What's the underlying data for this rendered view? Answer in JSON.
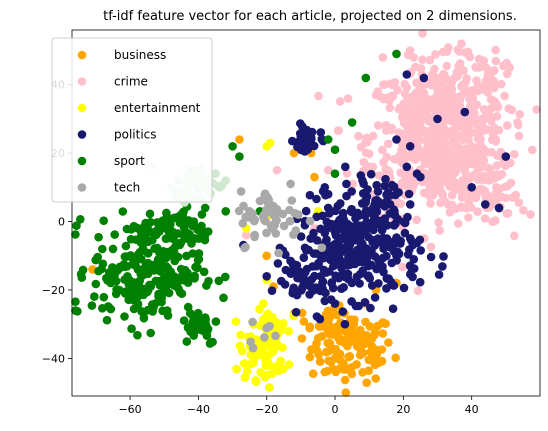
{
  "chart_data": {
    "type": "scatter",
    "title": "tf-idf feature vector for each article, projected on 2 dimensions.",
    "xlabel": "",
    "ylabel": "",
    "xlim": [
      -77,
      60
    ],
    "ylim": [
      -51,
      56
    ],
    "xticks": [
      -60,
      -40,
      -20,
      0,
      20,
      40
    ],
    "yticks": [
      -40,
      -20,
      0,
      20,
      40
    ],
    "xtick_labels": [
      "−60",
      "−40",
      "−20",
      "0",
      "20",
      "40"
    ],
    "ytick_labels": [
      "−40",
      "−20",
      "0",
      "20",
      "40"
    ],
    "grid": false,
    "legend_placement": "top-left",
    "series": [
      {
        "name": "business",
        "color": "#ffa500",
        "clusters": [
          {
            "center": [
              5,
              -37
            ],
            "spread": [
              6,
              5
            ],
            "n": 110
          },
          {
            "center": [
              -5,
              -30
            ],
            "spread": [
              3,
              3
            ],
            "n": 20
          }
        ],
        "points": [
          [
            -71,
            -14
          ],
          [
            -20,
            -10
          ],
          [
            -18,
            -19
          ],
          [
            -19,
            -28
          ],
          [
            -6,
            13
          ],
          [
            9,
            -24
          ],
          [
            5,
            -12
          ],
          [
            18,
            -18
          ],
          [
            -3,
            -44
          ],
          [
            -28,
            24
          ],
          [
            -12,
            20
          ],
          [
            12,
            -20
          ],
          [
            -7,
            20
          ]
        ]
      },
      {
        "name": "crime",
        "color": "#ffc0cb",
        "clusters": [
          {
            "center": [
              30,
              24
            ],
            "spread": [
              10,
              11
            ],
            "n": 650
          },
          {
            "center": [
              40,
              40
            ],
            "spread": [
              5,
              5
            ],
            "n": 60
          },
          {
            "center": [
              46,
              8
            ],
            "spread": [
              4,
              5
            ],
            "n": 60
          }
        ],
        "points": [
          [
            37,
            52
          ],
          [
            22,
            50
          ],
          [
            23,
            48
          ],
          [
            14,
            48
          ],
          [
            52,
            7
          ],
          [
            -26,
            -4
          ],
          [
            -20,
            0
          ],
          [
            -6,
            -2
          ],
          [
            -2,
            15
          ],
          [
            9,
            15
          ],
          [
            -17,
            15
          ],
          [
            2,
            0
          ]
        ]
      },
      {
        "name": "entertainment",
        "color": "#ffff00",
        "clusters": [
          {
            "center": [
              -21,
              -38
            ],
            "spread": [
              3.5,
              4
            ],
            "n": 70
          },
          {
            "center": [
              -20,
              -30
            ],
            "spread": [
              3,
              2
            ],
            "n": 30
          }
        ],
        "points": [
          [
            -20,
            22
          ],
          [
            -19,
            23
          ],
          [
            -19,
            2
          ],
          [
            -26,
            -2
          ],
          [
            -5,
            3
          ],
          [
            -20,
            -17
          ],
          [
            -21,
            -24
          ]
        ]
      },
      {
        "name": "politics",
        "color": "#191970",
        "clusters": [
          {
            "center": [
              7,
              -8
            ],
            "spread": [
              9,
              7
            ],
            "n": 300
          },
          {
            "center": [
              -10,
              -18
            ],
            "spread": [
              4,
              4
            ],
            "n": 40
          },
          {
            "center": [
              -8,
              24
            ],
            "spread": [
              2,
              2.5
            ],
            "n": 30
          },
          {
            "center": [
              12,
              6
            ],
            "spread": [
              3,
              3
            ],
            "n": 40
          }
        ],
        "points": [
          [
            21,
            43
          ],
          [
            26,
            42
          ],
          [
            24,
            14
          ],
          [
            18,
            24
          ],
          [
            21,
            16
          ],
          [
            22,
            5
          ],
          [
            3,
            16
          ],
          [
            -2,
            4
          ],
          [
            -3,
            10
          ],
          [
            -20,
            -16
          ],
          [
            -1,
            -18
          ],
          [
            0,
            -24
          ],
          [
            25,
            13
          ],
          [
            40,
            10
          ],
          [
            48,
            4
          ],
          [
            44,
            5
          ],
          [
            50,
            19
          ],
          [
            38,
            32
          ],
          [
            22,
            22
          ],
          [
            30,
            30
          ],
          [
            -2,
            8
          ],
          [
            8,
            12
          ]
        ]
      },
      {
        "name": "sport",
        "color": "#008000",
        "clusters": [
          {
            "center": [
              -55,
              -14
            ],
            "spread": [
              8,
              8
            ],
            "n": 260
          },
          {
            "center": [
              -45,
              -2
            ],
            "spread": [
              4,
              3
            ],
            "n": 40
          },
          {
            "center": [
              -40,
              -30
            ],
            "spread": [
              3,
              3
            ],
            "n": 30
          }
        ],
        "points": [
          [
            -30,
            22
          ],
          [
            -28,
            19
          ],
          [
            18,
            49
          ],
          [
            9,
            42
          ],
          [
            0,
            21
          ],
          [
            5,
            29
          ],
          [
            -22,
            3
          ],
          [
            -32,
            3
          ],
          [
            -38,
            4
          ],
          [
            0,
            14
          ],
          [
            -2,
            24
          ]
        ]
      },
      {
        "name": "tech",
        "color": "#a9a9a9",
        "clusters": [
          {
            "center": [
              -18,
              1
            ],
            "spread": [
              5,
              4
            ],
            "n": 55
          },
          {
            "center": [
              -21,
              -32
            ],
            "spread": [
              2,
              2
            ],
            "n": 6
          }
        ],
        "points": [
          [
            -24,
            -37
          ],
          [
            -22,
            6
          ],
          [
            -13,
            11
          ]
        ]
      },
      {
        "name": "",
        "color": "#d0e8cf",
        "clusters": [
          {
            "center": [
              -40,
              11
            ],
            "spread": [
              4,
              2.5
            ],
            "n": 45
          }
        ],
        "points": [
          [
            -46,
            9
          ],
          [
            -48,
            10
          ],
          [
            -35,
            14
          ],
          [
            -32,
            12
          ],
          [
            -41,
            15
          ],
          [
            -39,
            13
          ]
        ]
      }
    ]
  }
}
